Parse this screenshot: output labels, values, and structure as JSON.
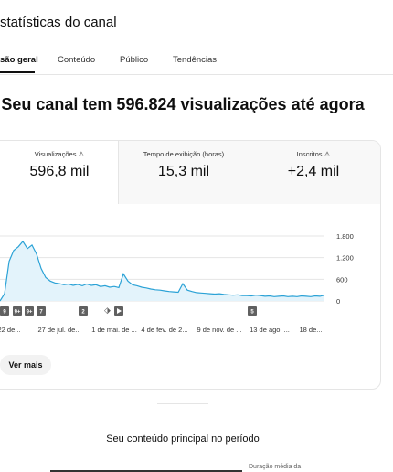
{
  "header": {
    "title": "statísticas do canal"
  },
  "tabs": [
    "são geral",
    "Conteúdo",
    "Público",
    "Tendências"
  ],
  "headline": "Seu canal tem 596.824 visualizações até agora",
  "metrics": [
    {
      "label": "Visualizações",
      "value": "596,8 mil"
    },
    {
      "label": "Tempo de exibição (horas)",
      "value": "15,3 mil"
    },
    {
      "label": "Inscritos",
      "value": "+2,4 mil"
    }
  ],
  "chart_data": {
    "type": "line",
    "color": "#2ba2d6",
    "categories": [
      null,
      null,
      "22 de...",
      null,
      null,
      null,
      null,
      null,
      null,
      null,
      null,
      null,
      null,
      "27 de jul. de...",
      null,
      null,
      null,
      null,
      null,
      null,
      null,
      null,
      null,
      null,
      null,
      "1 de mai. de ...",
      null,
      null,
      null,
      null,
      null,
      null,
      null,
      null,
      null,
      null,
      "4 de fev. de 2...",
      null,
      null,
      null,
      null,
      null,
      null,
      null,
      null,
      null,
      null,
      null,
      "9 de nov. de ...",
      null,
      null,
      null,
      null,
      null,
      null,
      null,
      null,
      null,
      null,
      "13 de ago. ...",
      null,
      null,
      null,
      null,
      null,
      null,
      null,
      null,
      "18 de...",
      null,
      null,
      null
    ],
    "values": [
      0,
      200,
      1100,
      1400,
      1500,
      1650,
      1450,
      1550,
      1300,
      900,
      650,
      550,
      500,
      480,
      450,
      470,
      430,
      460,
      420,
      470,
      430,
      450,
      400,
      420,
      380,
      400,
      370,
      750,
      550,
      450,
      420,
      380,
      360,
      330,
      310,
      300,
      280,
      260,
      250,
      240,
      480,
      300,
      260,
      230,
      220,
      210,
      200,
      190,
      200,
      180,
      170,
      160,
      170,
      150,
      150,
      140,
      160,
      150,
      130,
      140,
      120,
      130,
      140,
      120,
      130,
      120,
      140,
      130,
      120,
      140,
      130,
      160
    ],
    "ylim": [
      0,
      1800
    ],
    "yticks": [
      0,
      {
        "value": 600,
        "label": "600"
      },
      {
        "value": 1200,
        "label": "1.200"
      },
      {
        "value": 1800,
        "label": "1.800"
      }
    ],
    "grid": true,
    "annotations": [
      "9",
      "9+",
      "9+",
      "7",
      "2",
      "5"
    ]
  },
  "button": "Ver mais",
  "section_title": "Seu conteúdo principal no período",
  "column_header": "Duração média da"
}
